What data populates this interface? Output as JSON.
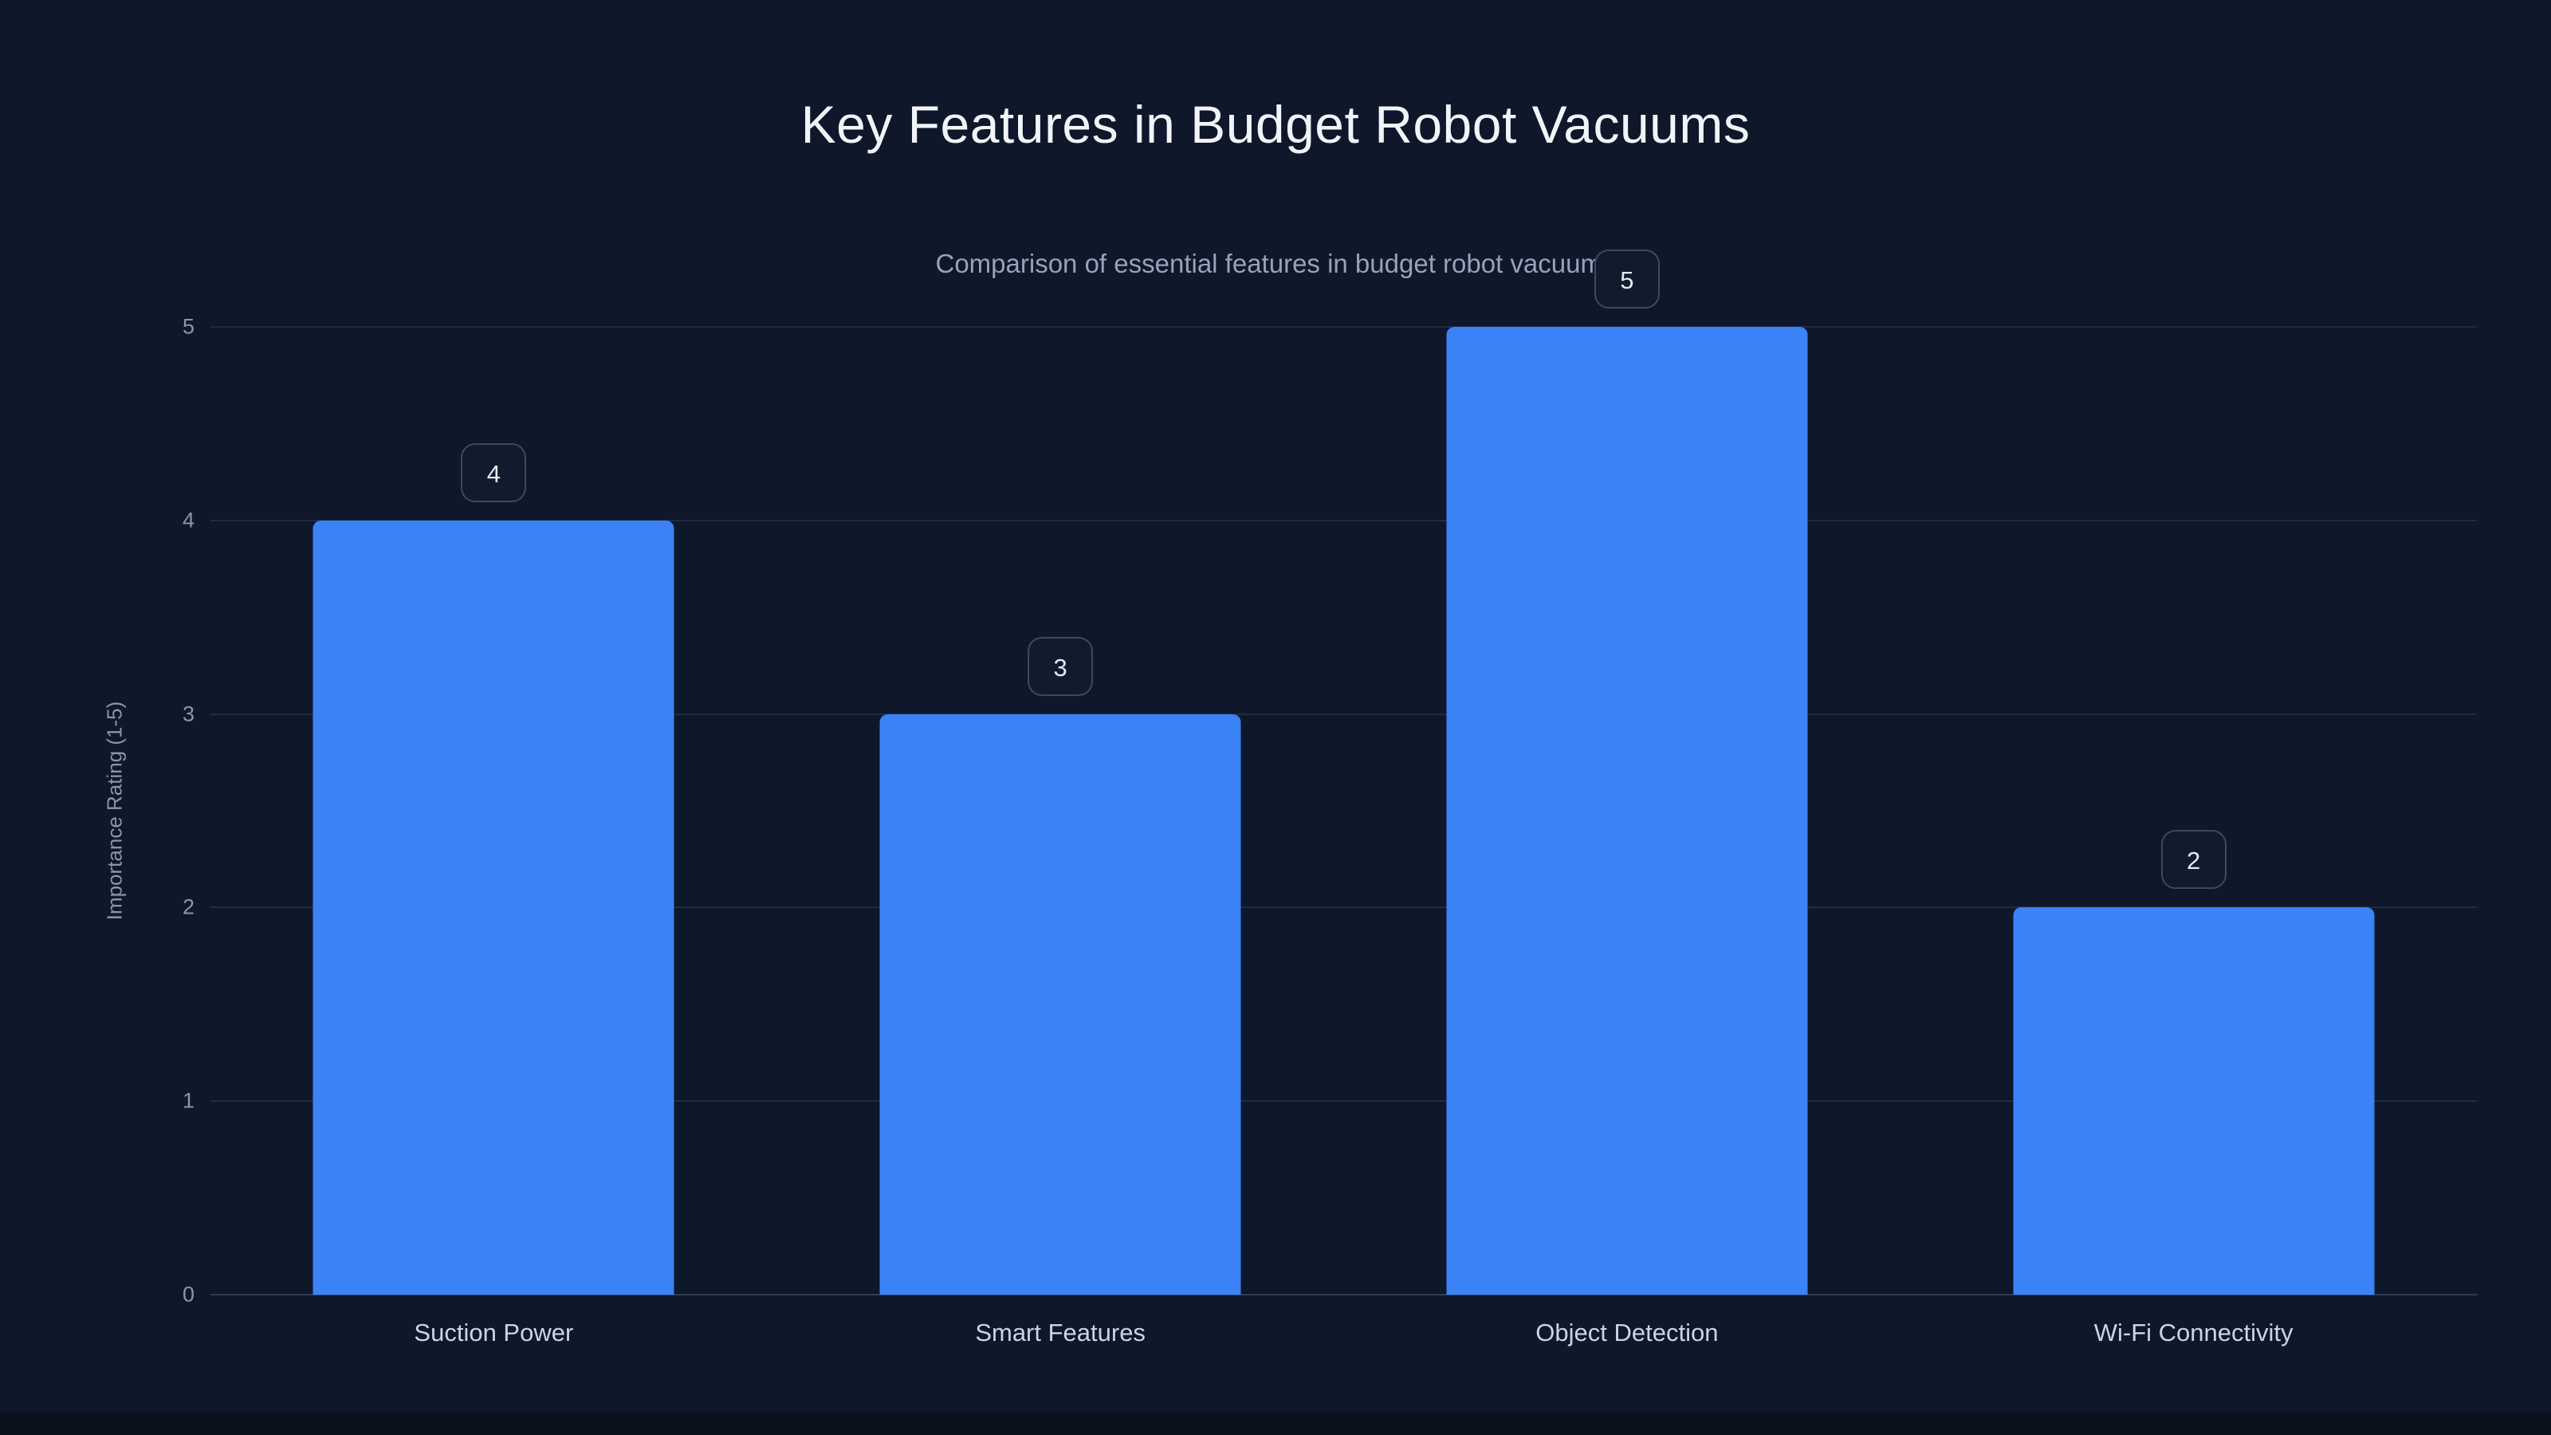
{
  "page": {
    "background": "#0f172a"
  },
  "chart_data": {
    "type": "bar",
    "title": "Key Features in Budget Robot Vacuums",
    "subtitle": "Comparison of essential features in budget robot vacuums",
    "categories": [
      "Suction Power",
      "Smart Features",
      "Object Detection",
      "Wi-Fi Connectivity"
    ],
    "values": [
      4,
      3,
      5,
      2
    ],
    "xlabel": "",
    "ylabel": "Importance Rating (1-5)",
    "ylim": [
      0,
      5
    ],
    "yticks": [
      0,
      1,
      2,
      3,
      4,
      5
    ],
    "bar_color": "#3b82f6",
    "grid": true,
    "legend": "none",
    "value_labels": [
      4,
      3,
      5,
      2
    ]
  }
}
